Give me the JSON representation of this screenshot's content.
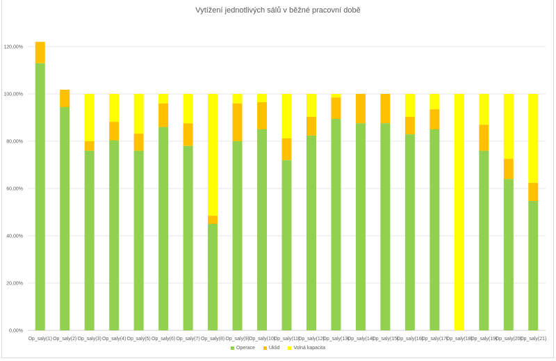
{
  "chart_data": {
    "type": "bar",
    "stacked": true,
    "title": "Vytížení jednotlivých sálů v běžné pracovní době",
    "xlabel": "",
    "ylabel": "",
    "ylim": [
      0,
      1.2
    ],
    "yticks": [
      0,
      0.2,
      0.4,
      0.6,
      0.8,
      1.0,
      1.2
    ],
    "ytick_labels": [
      "0,00%",
      "20,00%",
      "40,00%",
      "60,00%",
      "80,00%",
      "100,00%",
      "120,00%"
    ],
    "grid": true,
    "legend_position": "bottom",
    "categories": [
      "Op_saly(1)",
      "Op_saly(2)",
      "Op_saly(3)",
      "Op_saly(4)",
      "Op_saly(5)",
      "Op_saly(6)",
      "Op_saly(7)",
      "Op_saly(8)",
      "Op_saly(9)",
      "Op_saly(10)",
      "Op_saly(11)",
      "Op_saly(12)",
      "Op_saly(13)",
      "Op_saly(14)",
      "Op_saly(15)",
      "Op_saly(16)",
      "Op_saly(17)",
      "Op_saly(18)",
      "Op_saly(19)",
      "Op_saly(20)",
      "Op_saly(21)"
    ],
    "series": [
      {
        "name": "Operace",
        "color": "#92d050",
        "values": [
          1.13,
          0.944,
          0.76,
          0.803,
          0.76,
          0.86,
          0.78,
          0.45,
          0.8,
          0.85,
          0.72,
          0.824,
          0.894,
          0.876,
          0.876,
          0.829,
          0.85,
          0.0,
          0.76,
          0.64,
          0.547
        ]
      },
      {
        "name": "Úklid",
        "color": "#ffc000",
        "values": [
          0.09,
          0.074,
          0.04,
          0.079,
          0.072,
          0.1,
          0.096,
          0.035,
          0.16,
          0.115,
          0.092,
          0.079,
          0.091,
          0.124,
          0.124,
          0.074,
          0.085,
          0.0,
          0.11,
          0.086,
          0.077
        ]
      },
      {
        "name": "Volná kapacita",
        "color": "#ffff00",
        "values": [
          0.0,
          0.0,
          0.2,
          0.118,
          0.168,
          0.04,
          0.124,
          0.515,
          0.04,
          0.035,
          0.188,
          0.097,
          0.015,
          0.0,
          0.0,
          0.097,
          0.065,
          1.0,
          0.13,
          0.274,
          0.376
        ]
      }
    ]
  }
}
